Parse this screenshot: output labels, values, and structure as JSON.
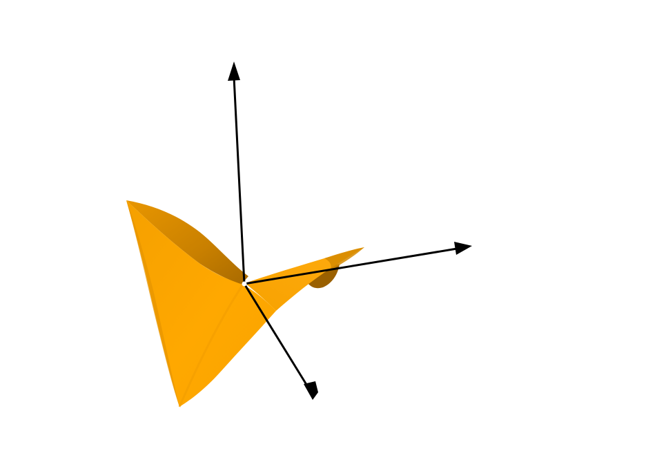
{
  "scene": {
    "background_color": "#ffffff",
    "surface": {
      "shape": "saddle-surface",
      "color_highlight": "#ffa800",
      "color_mid": "#f39e00",
      "color_shadow": "#b87300",
      "color_dark": "#8a5600"
    },
    "axes": {
      "color": "#000000",
      "items": [
        {
          "name": "vertical-axis"
        },
        {
          "name": "right-axis"
        },
        {
          "name": "front-axis"
        }
      ]
    },
    "origin_marker_color": "#ffffff"
  }
}
